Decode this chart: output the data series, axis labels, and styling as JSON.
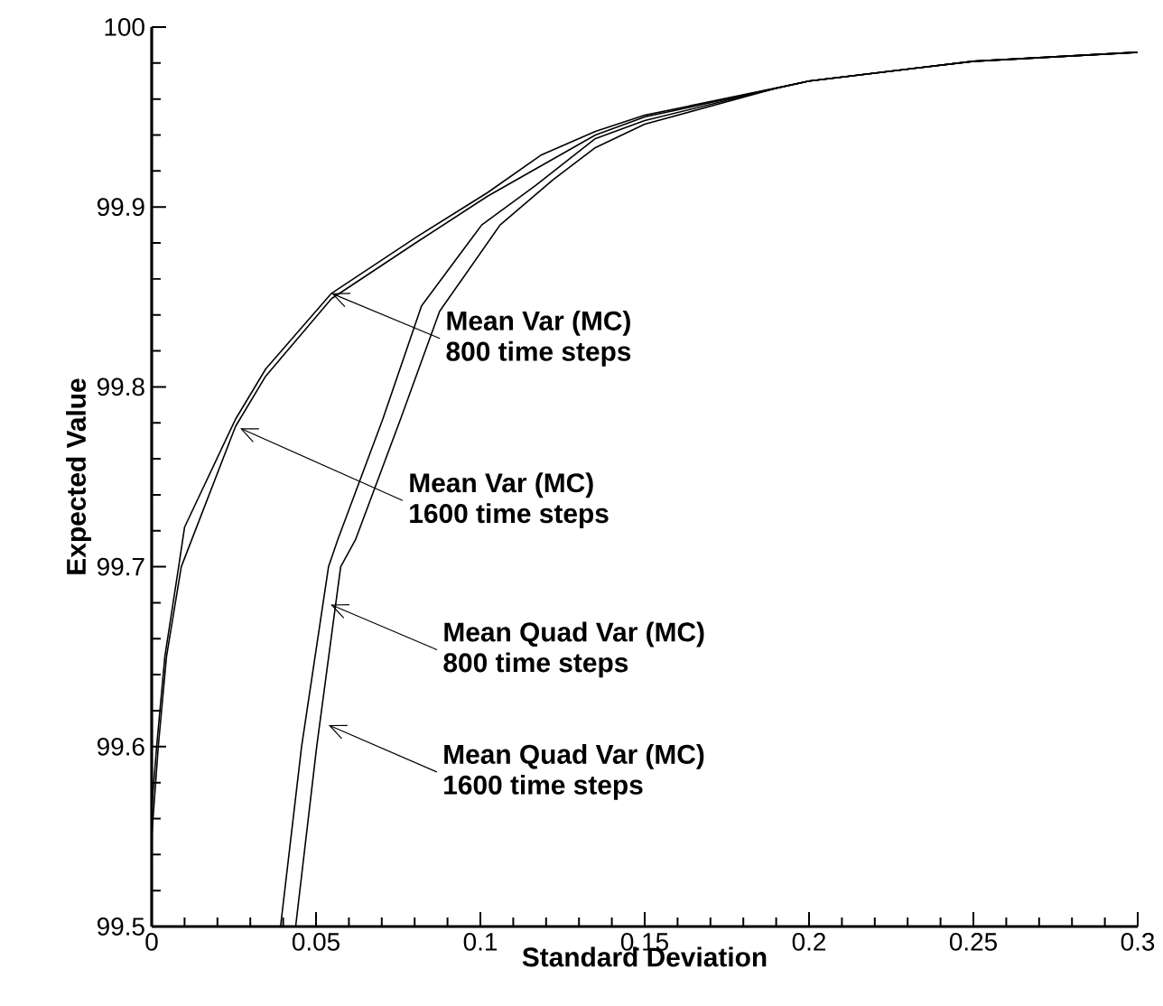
{
  "chart_data": {
    "type": "line",
    "xlabel": "Standard Deviation",
    "ylabel": "Expected Value",
    "xlim": [
      0,
      0.3
    ],
    "xticks": [
      0,
      0.05,
      0.1,
      0.15,
      0.2,
      0.25,
      0.3
    ],
    "ylim": [
      99.5,
      100
    ],
    "yticks": [
      99.5,
      99.6,
      99.7,
      99.8,
      99.9,
      100
    ],
    "series": [
      {
        "color": "#000000",
        "x": [
          0,
          0.0015,
          0.004,
          0.0082,
          0.01,
          0.0255,
          0.0347,
          0.0547,
          0.0803,
          0.1022,
          0.1186,
          0.135,
          0.15,
          0.2,
          0.25,
          0.3
        ],
        "values": [
          99.565,
          99.6,
          99.65,
          99.7,
          99.722,
          99.782,
          99.81,
          99.852,
          99.883,
          99.908,
          99.929,
          99.942,
          99.951,
          99.97,
          99.981,
          99.986
        ]
      },
      {
        "color": "#000000",
        "x": [
          0,
          0.002,
          0.0045,
          0.009,
          0.0255,
          0.0347,
          0.0547,
          0.0803,
          0.1022,
          0.135,
          0.15,
          0.2,
          0.25,
          0.3
        ],
        "values": [
          99.55,
          99.6,
          99.65,
          99.7,
          99.778,
          99.806,
          99.849,
          99.88,
          99.906,
          99.94,
          99.95,
          99.97,
          99.981,
          99.986
        ]
      },
      {
        "color": "#000000",
        "x": [
          0.0392,
          0.0456,
          0.0538,
          0.0566,
          0.0703,
          0.0821,
          0.1004,
          0.1168,
          0.135,
          0.15,
          0.19,
          0.2,
          0.25,
          0.3
        ],
        "values": [
          99.5,
          99.6,
          99.7,
          99.715,
          99.782,
          99.845,
          99.89,
          99.912,
          99.938,
          99.948,
          99.966,
          99.97,
          99.981,
          99.986
        ]
      },
      {
        "color": "#000000",
        "x": [
          0.0438,
          0.0502,
          0.0575,
          0.062,
          0.0757,
          0.0876,
          0.106,
          0.122,
          0.135,
          0.15,
          0.19,
          0.2,
          0.25,
          0.3
        ],
        "values": [
          99.5,
          99.6,
          99.7,
          99.715,
          99.782,
          99.842,
          99.89,
          99.915,
          99.933,
          99.946,
          99.966,
          99.97,
          99.981,
          99.986
        ]
      }
    ],
    "annotations": [
      {
        "text": "Mean Var (MC) 800 time steps",
        "x": 0.0547,
        "y": 99.852
      },
      {
        "text": "Mean Var (MC) 1600 time steps",
        "x": 0.0269,
        "y": 99.777
      },
      {
        "text": "Mean Quad Var (MC) 800 time steps",
        "x": 0.0544,
        "y": 99.679
      },
      {
        "text": "Mean Quad Var (MC) 1600 time steps",
        "x": 0.0538,
        "y": 99.612
      }
    ]
  }
}
